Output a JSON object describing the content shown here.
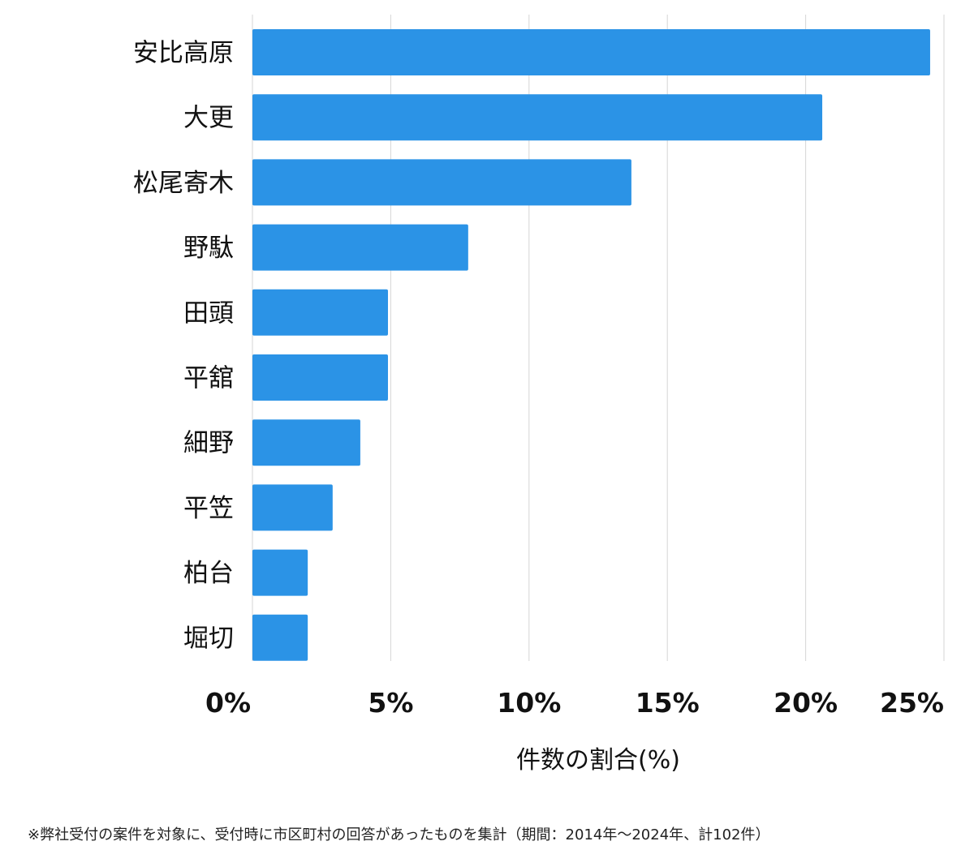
{
  "chart_data": {
    "type": "bar",
    "orientation": "horizontal",
    "categories": [
      "安比高原",
      "大更",
      "松尾寄木",
      "野駄",
      "田頭",
      "平舘",
      "細野",
      "平笠",
      "柏台",
      "堀切"
    ],
    "values": [
      24.5,
      20.6,
      13.7,
      7.8,
      4.9,
      4.9,
      3.9,
      2.9,
      2.0,
      2.0
    ],
    "xlabel": "件数の割合(%)",
    "xlim": [
      0,
      25
    ],
    "xticks": [
      0,
      5,
      10,
      15,
      20,
      25
    ],
    "xtick_labels": [
      "0%",
      "5%",
      "10%",
      "15%",
      "20%",
      "25%"
    ],
    "grid": "vertical",
    "bar_color": "#2b93e6"
  },
  "footnote": "※弊社受付の案件を対象に、受付時に市区町村の回答があったものを集計（期間：2014年〜2024年、計102件）"
}
